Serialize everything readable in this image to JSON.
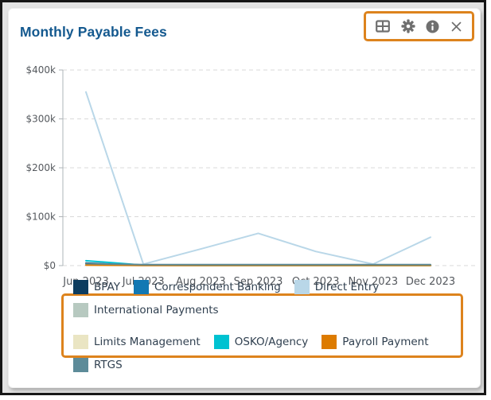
{
  "header": {
    "title": "Monthly Payable Fees"
  },
  "toolbar": {
    "highlight_color": "#dd831d",
    "icons": [
      "table-icon",
      "gear-icon",
      "info-icon",
      "close-icon"
    ]
  },
  "annotations": {
    "highlight_color": "#dd831d"
  },
  "chart_data": {
    "type": "line",
    "title": "Monthly Payable Fees",
    "categories": [
      "Jun 2023",
      "Jul 2023",
      "Aug 2023",
      "Sep 2023",
      "Oct 2023",
      "Nov 2023",
      "Dec 2023"
    ],
    "series": [
      {
        "name": "BPAY",
        "color": "#0c3c5f",
        "values": [
          5000,
          1000,
          500,
          500,
          500,
          500,
          500
        ]
      },
      {
        "name": "Correspondent Banking",
        "color": "#1278b3",
        "values": [
          2000,
          500,
          500,
          500,
          500,
          500,
          500
        ]
      },
      {
        "name": "Direct Entry",
        "color": "#b9d7e8",
        "values": [
          355000,
          3000,
          34000,
          66000,
          29000,
          3000,
          58000
        ]
      },
      {
        "name": "International Payments",
        "color": "#b7c9c0",
        "values": [
          3000,
          1000,
          1000,
          1000,
          1000,
          1000,
          1000
        ]
      },
      {
        "name": "Limits Management",
        "color": "#eae5c3",
        "values": [
          1000,
          500,
          500,
          500,
          500,
          500,
          500
        ]
      },
      {
        "name": "OSKO/Agency",
        "color": "#00c2d1",
        "values": [
          10000,
          1000,
          500,
          500,
          500,
          500,
          500
        ]
      },
      {
        "name": "Payroll Payment",
        "color": "#dd7b00",
        "values": [
          1000,
          500,
          500,
          500,
          500,
          500,
          500
        ]
      },
      {
        "name": "RTGS",
        "color": "#5d8b99",
        "values": [
          4000,
          2000,
          2000,
          2000,
          2000,
          2000,
          2000
        ]
      }
    ],
    "xlabel": "",
    "ylabel": "",
    "ylim": [
      0,
      400000
    ],
    "yticks": [
      {
        "value": 0,
        "label": "$0"
      },
      {
        "value": 100000,
        "label": "$100k"
      },
      {
        "value": 200000,
        "label": "$200k"
      },
      {
        "value": 300000,
        "label": "$300k"
      },
      {
        "value": 400000,
        "label": "$400k"
      }
    ],
    "grid": true,
    "legend_position": "bottom"
  }
}
